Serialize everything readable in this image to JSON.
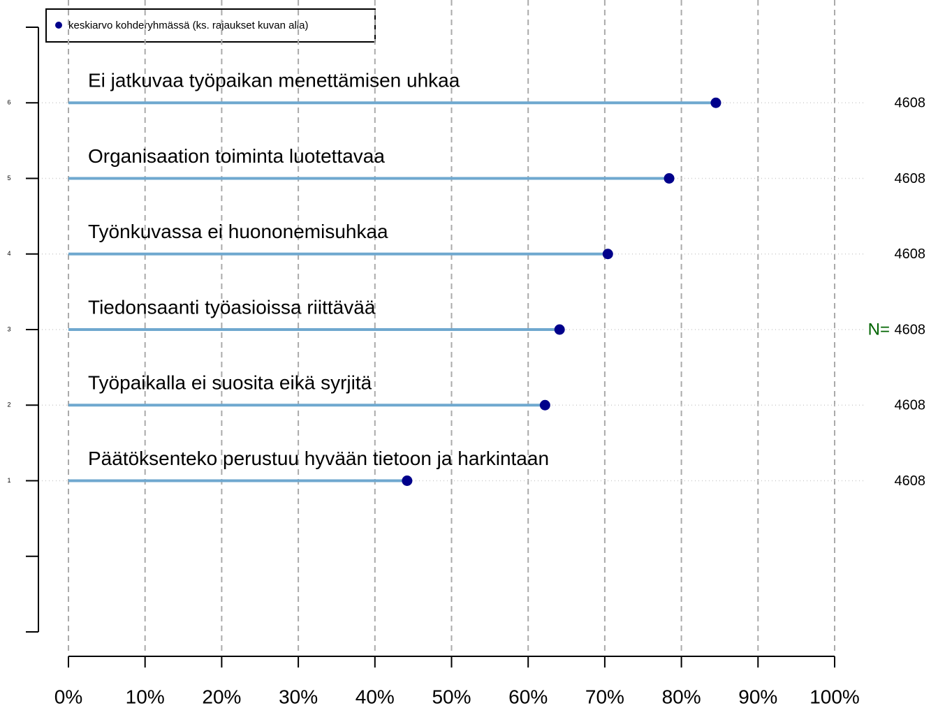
{
  "chart_data": {
    "type": "lollipop",
    "legend": "keskiarvo kohderyhmässä (ks. rajaukset kuvan alla)",
    "categories": [
      "Päätöksenteko perustuu hyvään tietoon ja harkintaan",
      "Työpaikalla ei suosita eikä syrjitä",
      "Tiedonsaanti työasioissa riittävää",
      "Työnkuvassa ei huononemisuhkaa",
      "Organisaation toiminta luotettavaa",
      "Ei jatkuvaa työpaikan menettämisen uhkaa"
    ],
    "values": [
      44.2,
      62.2,
      64.1,
      70.4,
      78.4,
      84.5
    ],
    "n": [
      4608,
      4608,
      4608,
      4608,
      4608,
      4608
    ],
    "n_label": "N=",
    "line_color": "#6fa8cf",
    "dot_color": "#00008b",
    "xlim": [
      0,
      100
    ],
    "xticks": [
      {
        "value": 0,
        "label": "0%"
      },
      {
        "value": 10,
        "label": "10%"
      },
      {
        "value": 20,
        "label": "20%"
      },
      {
        "value": 30,
        "label": "30%"
      },
      {
        "value": 40,
        "label": "40%"
      },
      {
        "value": 50,
        "label": "50%"
      },
      {
        "value": 60,
        "label": "60%"
      },
      {
        "value": 70,
        "label": "70%"
      },
      {
        "value": 80,
        "label": "80%"
      },
      {
        "value": 90,
        "label": "90%"
      },
      {
        "value": 100,
        "label": "100%"
      }
    ],
    "ylim": [
      -1,
      7
    ],
    "yticks": [
      1,
      2,
      3,
      4,
      5,
      6
    ],
    "minor_yticks": [
      -1,
      0,
      7
    ],
    "grid": true
  }
}
